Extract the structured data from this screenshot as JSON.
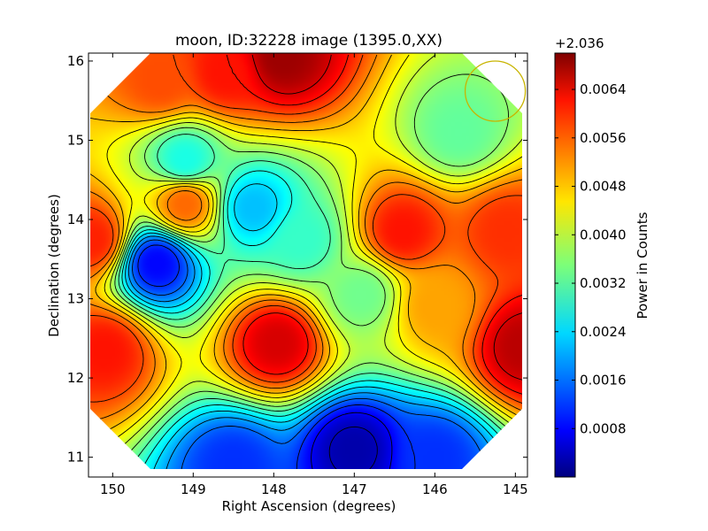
{
  "chart_data": {
    "type": "heatmap",
    "title": "moon, ID:32228 image (1395.0,XX)",
    "xlabel": "Right Ascension (degrees)",
    "ylabel": "Declination (degrees)",
    "xlim": [
      150.3,
      144.85
    ],
    "ylim": [
      10.75,
      16.1
    ],
    "x_ticks": [
      150,
      149,
      148,
      147,
      146,
      145
    ],
    "y_ticks": [
      11,
      12,
      13,
      14,
      15,
      16
    ],
    "x_tick_labels": [
      "150",
      "149",
      "148",
      "147",
      "146",
      "145"
    ],
    "y_tick_labels": [
      "11",
      "12",
      "13",
      "14",
      "15",
      "16"
    ],
    "colormap": "jet",
    "contours": true,
    "grid": false,
    "colorbar": {
      "label": "Power in Counts",
      "offset_text": "+2.036",
      "range": [
        0.0,
        0.007
      ],
      "ticks": [
        0.0008,
        0.0016,
        0.0024,
        0.0032,
        0.004,
        0.0048,
        0.0056,
        0.0064
      ],
      "tick_labels": [
        "0.0008",
        "0.0016",
        "0.0024",
        "0.0032",
        "0.0040",
        "0.0048",
        "0.0056",
        "0.0064"
      ]
    },
    "marker": {
      "shape": "circle",
      "color": "#c8b400",
      "ra": 145.25,
      "dec": 15.62
    },
    "features": [
      {
        "ra": 147.9,
        "dec": 16.05,
        "value": 0.0068
      },
      {
        "ra": 148.6,
        "dec": 15.85,
        "value": 0.006
      },
      {
        "ra": 149.4,
        "dec": 15.75,
        "value": 0.0056
      },
      {
        "ra": 150.25,
        "dec": 13.75,
        "value": 0.0059
      },
      {
        "ra": 150.1,
        "dec": 12.35,
        "value": 0.006
      },
      {
        "ra": 147.95,
        "dec": 12.45,
        "value": 0.0064
      },
      {
        "ra": 146.4,
        "dec": 13.85,
        "value": 0.006
      },
      {
        "ra": 145.1,
        "dec": 13.85,
        "value": 0.0058
      },
      {
        "ra": 144.9,
        "dec": 12.4,
        "value": 0.0066
      },
      {
        "ra": 146.0,
        "dec": 12.9,
        "value": 0.005
      },
      {
        "ra": 149.1,
        "dec": 14.2,
        "value": 0.0054
      },
      {
        "ra": 149.45,
        "dec": 13.45,
        "value": 0.0009
      },
      {
        "ra": 149.1,
        "dec": 14.75,
        "value": 0.0028
      },
      {
        "ra": 148.25,
        "dec": 14.15,
        "value": 0.0022
      },
      {
        "ra": 147.65,
        "dec": 13.75,
        "value": 0.003
      },
      {
        "ra": 147.0,
        "dec": 11.1,
        "value": 0.0003
      },
      {
        "ra": 148.5,
        "dec": 10.9,
        "value": 0.0012
      },
      {
        "ra": 146.0,
        "dec": 11.0,
        "value": 0.0012
      },
      {
        "ra": 146.9,
        "dec": 13.05,
        "value": 0.0034
      },
      {
        "ra": 145.7,
        "dec": 15.1,
        "value": 0.0033
      }
    ]
  }
}
